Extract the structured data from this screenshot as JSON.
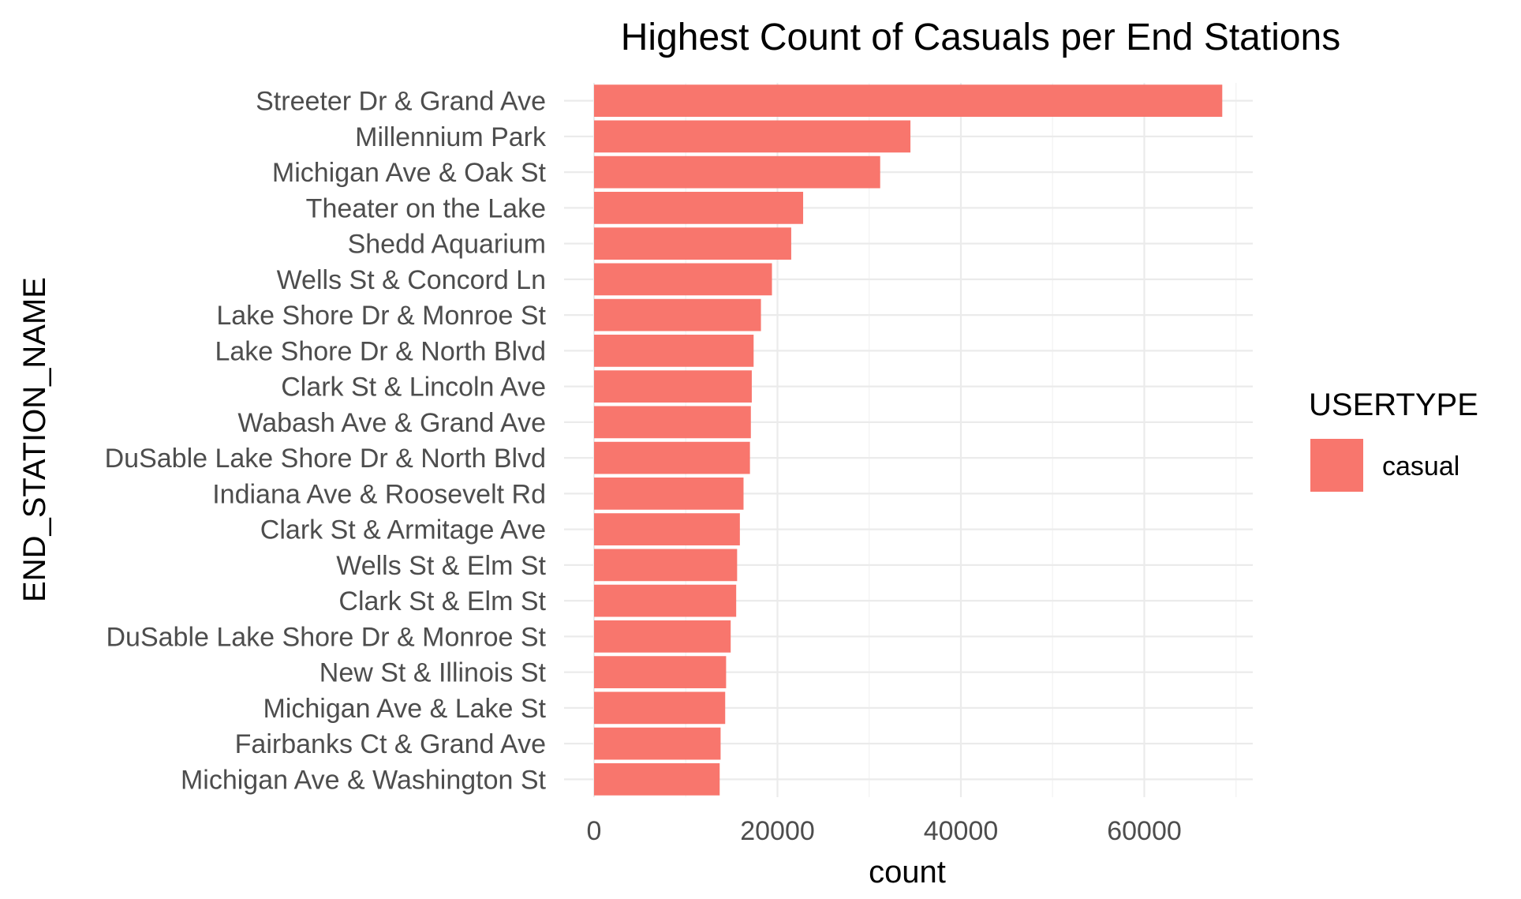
{
  "chart_data": {
    "type": "bar",
    "orientation": "horizontal",
    "title": "Highest Count of Casuals per End Stations",
    "xlabel": "count",
    "ylabel": "END_STATION_NAME",
    "xlim": [
      0,
      72000
    ],
    "x_ticks": [
      0,
      20000,
      40000,
      60000
    ],
    "x_tick_labels": [
      "0",
      "20000",
      "40000",
      "60000"
    ],
    "grid": true,
    "legend_position": "right",
    "legend": {
      "title": "USERTYPE",
      "entries": [
        {
          "label": "casual",
          "color": "#F8766D"
        }
      ]
    },
    "categories": [
      "Streeter Dr & Grand Ave",
      "Millennium Park",
      "Michigan Ave & Oak St",
      "Theater on the Lake",
      "Shedd Aquarium",
      "Wells St & Concord Ln",
      "Lake Shore Dr & Monroe St",
      "Lake Shore Dr & North Blvd",
      "Clark St & Lincoln Ave",
      "Wabash Ave & Grand Ave",
      "DuSable Lake Shore Dr & North Blvd",
      "Indiana Ave & Roosevelt Rd",
      "Clark St & Armitage Ave",
      "Wells St & Elm St",
      "Clark St & Elm St",
      "DuSable Lake Shore Dr & Monroe St",
      "New St & Illinois St",
      "Michigan Ave & Lake St",
      "Fairbanks Ct & Grand Ave",
      "Michigan Ave & Washington St"
    ],
    "series": [
      {
        "name": "casual",
        "color": "#F8766D",
        "values": [
          68500,
          34500,
          31200,
          22800,
          21500,
          19400,
          18200,
          17400,
          17200,
          17100,
          17000,
          16300,
          15900,
          15600,
          15500,
          14900,
          14400,
          14300,
          13800,
          13700
        ]
      }
    ]
  }
}
